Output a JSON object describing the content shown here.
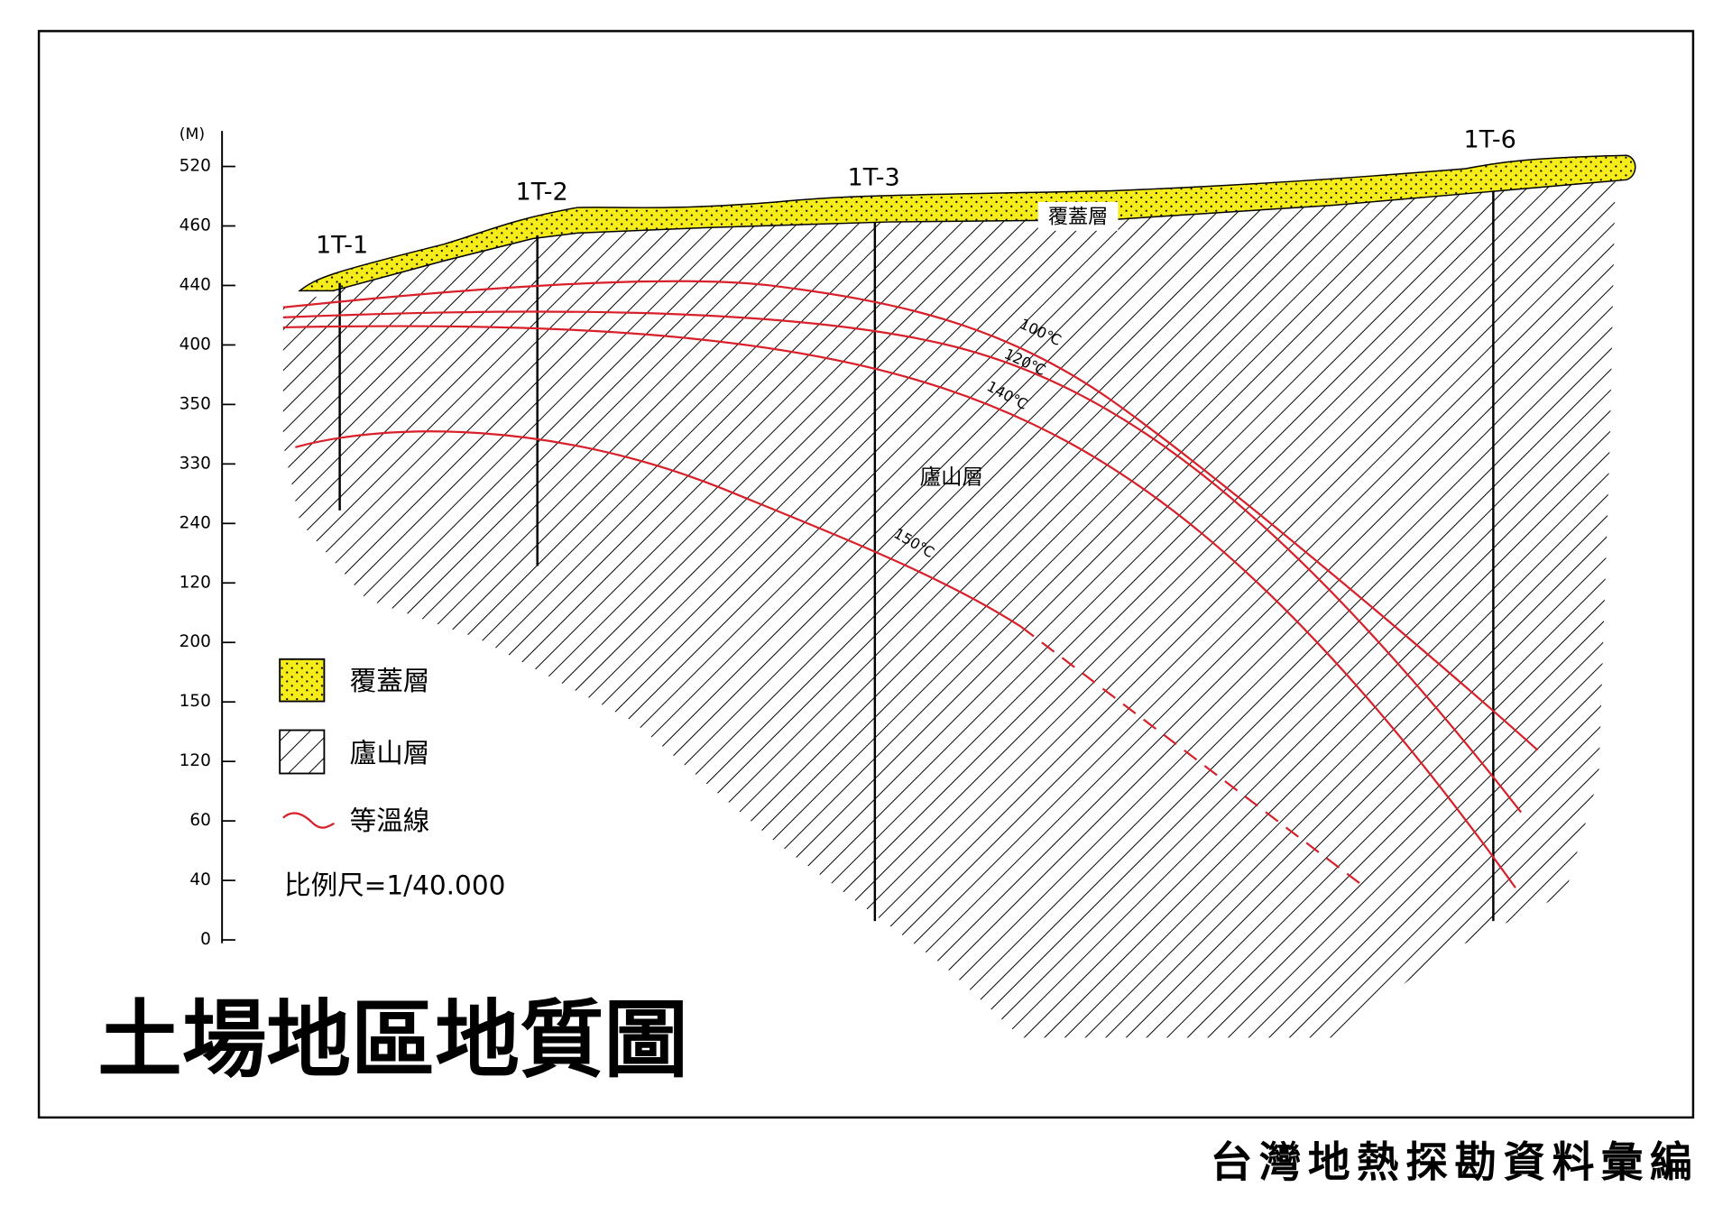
{
  "title": "土場地區地質圖",
  "source": "台灣地熱探勘資料彙編",
  "axis": {
    "unit": "(M)",
    "ticks": [
      "520",
      "460",
      "440",
      "400",
      "350",
      "330",
      "240",
      "120",
      "200",
      "150",
      "120",
      "60",
      "40",
      "0"
    ]
  },
  "wells": [
    "1T-1",
    "1T-2",
    "1T-3",
    "1T-6"
  ],
  "layers": {
    "cover": "覆蓋層",
    "lushan": "廬山層"
  },
  "isotherms": [
    "100℃",
    "120℃",
    "140℃",
    "150℃"
  ],
  "legend": [
    {
      "label": "覆蓋層"
    },
    {
      "label": "廬山層"
    },
    {
      "label": "等溫線"
    }
  ],
  "scale": "比例尺=1/40.000"
}
